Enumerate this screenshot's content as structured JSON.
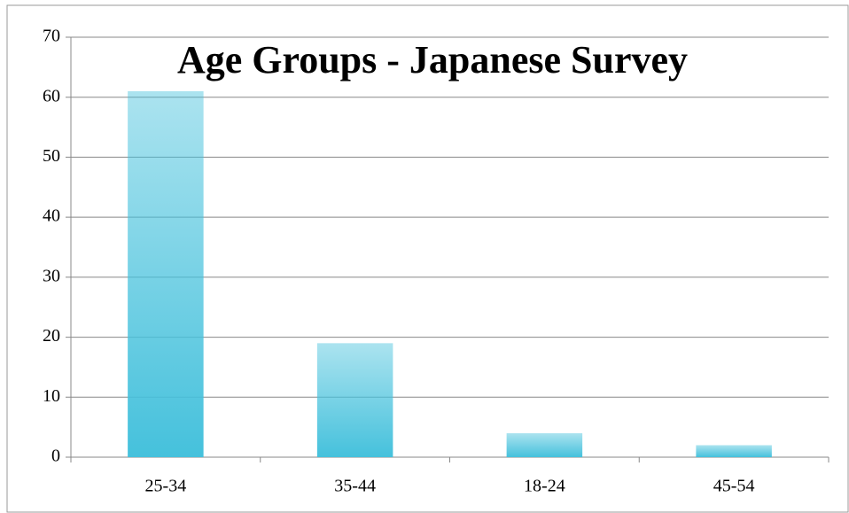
{
  "chart_data": {
    "type": "bar",
    "title": "Age Groups - Japanese Survey",
    "categories": [
      "25-34",
      "35-44",
      "18-24",
      "45-54"
    ],
    "values": [
      61,
      19,
      4,
      2
    ],
    "color": "#45c1dc",
    "ylim": [
      0,
      70
    ],
    "yticks": [
      0,
      10,
      20,
      30,
      40,
      50,
      60,
      70
    ],
    "grid": true
  }
}
